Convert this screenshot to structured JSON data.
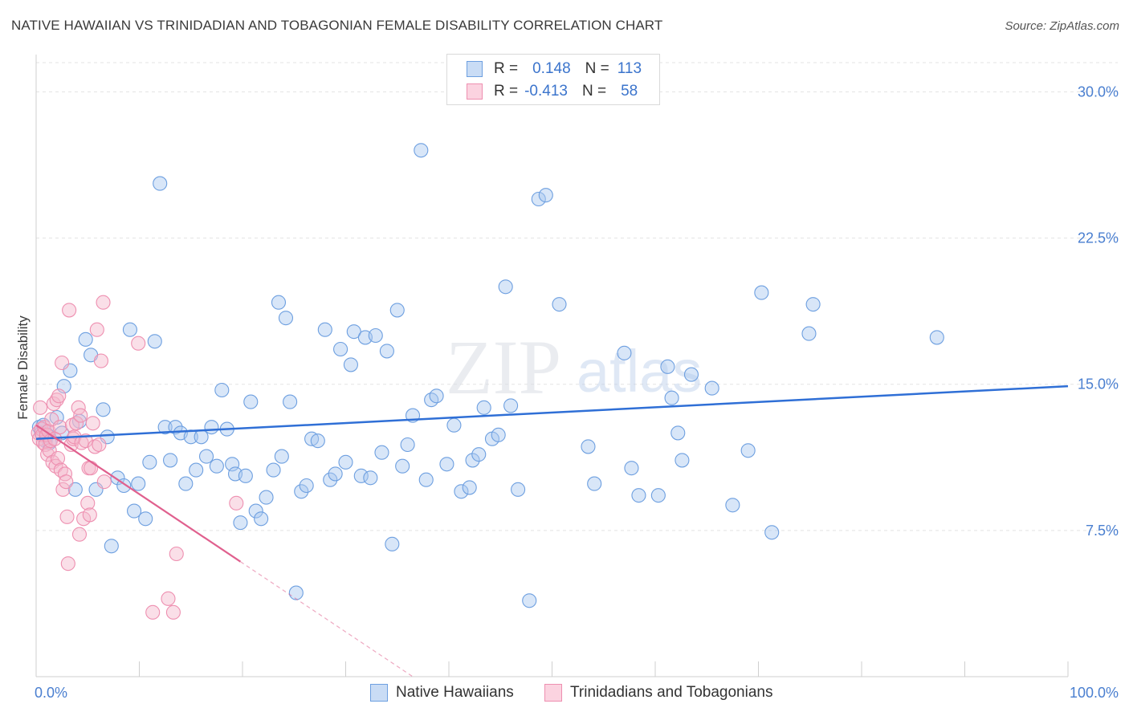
{
  "title": "NATIVE HAWAIIAN VS TRINIDADIAN AND TOBAGONIAN FEMALE DISABILITY CORRELATION CHART",
  "source": "Source: ZipAtlas.com",
  "watermark": {
    "zip": "ZIP",
    "atlas": "atlas"
  },
  "colors": {
    "blue_fill": "#a9c8f0",
    "blue_stroke": "#6d9fe0",
    "blue_line": "#2f6fd6",
    "pink_fill": "#f5b8cc",
    "pink_stroke": "#ee8fb0",
    "pink_line": "#e0608e",
    "tick_text": "#4a7fd0",
    "grid": "#e3e3e3"
  },
  "legend": {
    "rows": [
      {
        "r_label": "R =",
        "r_value": "0.148",
        "n_label": "N =",
        "n_value": "113"
      },
      {
        "r_label": "R =",
        "r_value": "-0.413",
        "n_label": "N =",
        "n_value": "58"
      }
    ]
  },
  "chart_data": {
    "type": "scatter",
    "title": "NATIVE HAWAIIAN VS TRINIDADIAN AND TOBAGONIAN FEMALE DISABILITY CORRELATION CHART",
    "xlabel": "",
    "ylabel": "Female Disability",
    "xlim": [
      0,
      100
    ],
    "ylim": [
      0,
      31.5
    ],
    "x_tick_labels": [
      "0.0%",
      "100.0%"
    ],
    "y_ticks": [
      7.5,
      15.0,
      22.5,
      30.0
    ],
    "y_tick_labels": [
      "7.5%",
      "15.0%",
      "22.5%",
      "30.0%"
    ],
    "grid": true,
    "series": [
      {
        "name": "Native Hawaiians",
        "trend": {
          "x": [
            0,
            100
          ],
          "y": [
            12.2,
            14.9
          ],
          "dashed_to": null
        },
        "points": [
          [
            0.3,
            12.8
          ],
          [
            0.5,
            12.5
          ],
          [
            0.7,
            12.9
          ],
          [
            0.9,
            12.1
          ],
          [
            1.1,
            12.4
          ],
          [
            1.3,
            12.0
          ],
          [
            2.0,
            13.3
          ],
          [
            2.5,
            12.5
          ],
          [
            2.7,
            14.9
          ],
          [
            3.3,
            15.7
          ],
          [
            3.8,
            9.6
          ],
          [
            4.2,
            13.1
          ],
          [
            4.8,
            17.3
          ],
          [
            5.3,
            16.5
          ],
          [
            5.8,
            9.6
          ],
          [
            6.5,
            13.7
          ],
          [
            6.9,
            12.3
          ],
          [
            7.3,
            6.7
          ],
          [
            7.9,
            10.2
          ],
          [
            8.5,
            9.8
          ],
          [
            9.1,
            17.8
          ],
          [
            9.5,
            8.5
          ],
          [
            9.9,
            9.9
          ],
          [
            10.6,
            8.1
          ],
          [
            11.0,
            11.0
          ],
          [
            11.5,
            17.2
          ],
          [
            12.0,
            25.3
          ],
          [
            12.5,
            12.8
          ],
          [
            13.0,
            11.1
          ],
          [
            13.5,
            12.8
          ],
          [
            14.0,
            12.5
          ],
          [
            14.5,
            9.9
          ],
          [
            15.0,
            12.3
          ],
          [
            15.5,
            10.6
          ],
          [
            16.0,
            12.3
          ],
          [
            16.5,
            11.3
          ],
          [
            17.0,
            12.8
          ],
          [
            17.5,
            10.8
          ],
          [
            18.0,
            14.7
          ],
          [
            18.5,
            12.7
          ],
          [
            19.0,
            10.9
          ],
          [
            19.3,
            10.4
          ],
          [
            19.8,
            7.9
          ],
          [
            20.3,
            10.3
          ],
          [
            20.8,
            14.1
          ],
          [
            21.3,
            8.5
          ],
          [
            21.8,
            8.1
          ],
          [
            22.3,
            9.2
          ],
          [
            23.0,
            10.6
          ],
          [
            23.5,
            19.2
          ],
          [
            23.8,
            11.3
          ],
          [
            24.2,
            18.4
          ],
          [
            24.6,
            14.1
          ],
          [
            25.2,
            4.3
          ],
          [
            25.7,
            9.5
          ],
          [
            26.2,
            9.8
          ],
          [
            26.7,
            12.2
          ],
          [
            27.3,
            12.1
          ],
          [
            28.0,
            17.8
          ],
          [
            28.5,
            10.1
          ],
          [
            29.0,
            10.4
          ],
          [
            29.5,
            16.8
          ],
          [
            30.0,
            11.0
          ],
          [
            30.5,
            16.0
          ],
          [
            30.8,
            17.7
          ],
          [
            31.5,
            10.3
          ],
          [
            31.9,
            17.4
          ],
          [
            32.4,
            10.2
          ],
          [
            32.9,
            17.5
          ],
          [
            33.5,
            11.5
          ],
          [
            34.0,
            16.7
          ],
          [
            34.5,
            6.8
          ],
          [
            35.0,
            18.8
          ],
          [
            35.5,
            10.8
          ],
          [
            36.0,
            11.9
          ],
          [
            36.5,
            13.4
          ],
          [
            37.3,
            27.0
          ],
          [
            37.8,
            10.1
          ],
          [
            38.3,
            14.2
          ],
          [
            38.8,
            14.4
          ],
          [
            39.8,
            10.9
          ],
          [
            40.5,
            12.9
          ],
          [
            41.2,
            9.5
          ],
          [
            42.0,
            9.7
          ],
          [
            42.3,
            11.1
          ],
          [
            42.9,
            11.4
          ],
          [
            43.4,
            13.8
          ],
          [
            44.2,
            12.2
          ],
          [
            44.8,
            12.4
          ],
          [
            45.5,
            20.0
          ],
          [
            46.0,
            13.9
          ],
          [
            46.7,
            9.6
          ],
          [
            47.8,
            3.9
          ],
          [
            48.7,
            24.5
          ],
          [
            49.4,
            24.7
          ],
          [
            50.7,
            19.1
          ],
          [
            53.5,
            11.8
          ],
          [
            54.1,
            9.9
          ],
          [
            57.0,
            16.6
          ],
          [
            57.7,
            10.7
          ],
          [
            58.4,
            9.3
          ],
          [
            60.3,
            9.3
          ],
          [
            61.2,
            15.9
          ],
          [
            61.6,
            14.3
          ],
          [
            62.2,
            12.5
          ],
          [
            62.6,
            11.1
          ],
          [
            63.5,
            15.5
          ],
          [
            65.5,
            14.8
          ],
          [
            67.5,
            8.8
          ],
          [
            69.0,
            11.6
          ],
          [
            70.3,
            19.7
          ],
          [
            71.3,
            7.4
          ],
          [
            74.9,
            17.6
          ],
          [
            75.3,
            19.1
          ],
          [
            87.3,
            17.4
          ]
        ]
      },
      {
        "name": "Trinidadians and Tobagonians",
        "trend": {
          "x": [
            0,
            19.8
          ],
          "y": [
            12.9,
            5.9
          ],
          "dashed_to": [
            36.5,
            0
          ]
        },
        "points": [
          [
            0.2,
            12.5
          ],
          [
            0.3,
            12.2
          ],
          [
            0.4,
            13.8
          ],
          [
            0.5,
            12.7
          ],
          [
            0.6,
            12.4
          ],
          [
            0.7,
            12.0
          ],
          [
            0.8,
            12.8
          ],
          [
            0.9,
            11.9
          ],
          [
            1.0,
            12.4
          ],
          [
            1.1,
            11.4
          ],
          [
            1.2,
            12.6
          ],
          [
            1.3,
            11.6
          ],
          [
            1.4,
            12.1
          ],
          [
            1.5,
            13.2
          ],
          [
            1.6,
            11.0
          ],
          [
            1.7,
            14.0
          ],
          [
            1.8,
            12.2
          ],
          [
            1.9,
            10.8
          ],
          [
            2.0,
            14.2
          ],
          [
            2.1,
            11.2
          ],
          [
            2.2,
            14.4
          ],
          [
            2.3,
            12.8
          ],
          [
            2.4,
            10.6
          ],
          [
            2.5,
            16.1
          ],
          [
            2.6,
            9.6
          ],
          [
            2.8,
            10.4
          ],
          [
            2.9,
            10.0
          ],
          [
            3.0,
            8.2
          ],
          [
            3.2,
            18.8
          ],
          [
            3.4,
            11.9
          ],
          [
            3.5,
            12.9
          ],
          [
            3.6,
            12.2
          ],
          [
            3.7,
            12.3
          ],
          [
            3.9,
            13.0
          ],
          [
            4.1,
            13.8
          ],
          [
            4.2,
            7.3
          ],
          [
            4.3,
            13.4
          ],
          [
            4.4,
            12.0
          ],
          [
            4.6,
            8.1
          ],
          [
            4.8,
            12.1
          ],
          [
            5.0,
            8.9
          ],
          [
            5.1,
            10.7
          ],
          [
            5.2,
            8.3
          ],
          [
            5.3,
            10.7
          ],
          [
            5.5,
            13.0
          ],
          [
            5.7,
            11.8
          ],
          [
            5.9,
            17.8
          ],
          [
            6.1,
            11.9
          ],
          [
            6.3,
            16.2
          ],
          [
            6.5,
            19.2
          ],
          [
            6.6,
            10.0
          ],
          [
            9.9,
            17.1
          ],
          [
            11.3,
            3.3
          ],
          [
            12.8,
            4.0
          ],
          [
            13.3,
            3.3
          ],
          [
            13.6,
            6.3
          ],
          [
            19.4,
            8.9
          ],
          [
            3.1,
            5.8
          ]
        ]
      }
    ]
  },
  "bottom_legend": {
    "items": [
      {
        "label": "Native Hawaiians"
      },
      {
        "label": "Trinidadians and Tobagonians"
      }
    ]
  }
}
